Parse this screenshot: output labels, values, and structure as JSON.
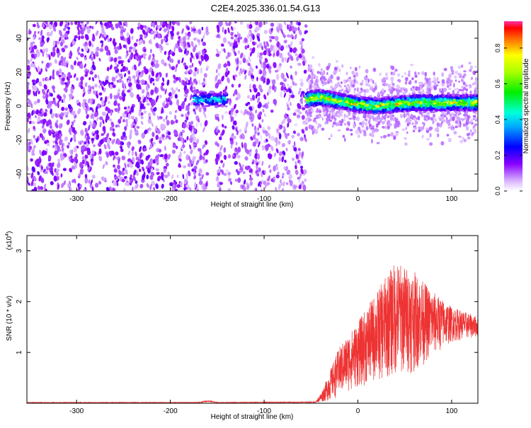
{
  "title": "C2E4.2025.336.01.54.G13",
  "chart_data": [
    {
      "type": "heatmap",
      "xlabel": "Height of straight line (km)",
      "ylabel": "Frequency (Hz)",
      "xlim": [
        -353,
        128
      ],
      "ylim": [
        -50,
        50
      ],
      "xticks": [
        -300,
        -200,
        -100,
        0,
        100
      ],
      "yticks": [
        -40,
        -20,
        0,
        20,
        40
      ],
      "colorbar": {
        "label": "Normalized spectral amplitude",
        "range": [
          0.0,
          0.95
        ],
        "ticks": [
          "0.0",
          "0.2",
          "0.4",
          "0.6",
          "0.8"
        ]
      },
      "regions": [
        {
          "name": "noise",
          "x_range": [
            -353,
            -55
          ],
          "freq_range": [
            -50,
            50
          ],
          "amplitude": 0.15
        },
        {
          "name": "gap",
          "x_range": [
            -160,
            -152
          ],
          "freq_range": [
            -50,
            50
          ],
          "amplitude": 0.0
        },
        {
          "name": "weak-signal",
          "x_range": [
            -175,
            -140
          ],
          "freq_center": 2,
          "amplitude": 0.5
        },
        {
          "name": "signal",
          "x_range": [
            -55,
            128
          ],
          "freq_center": 2,
          "amplitude": 0.95
        }
      ],
      "signal_center_hz": [
        [
          -55,
          4
        ],
        [
          -40,
          5
        ],
        [
          -20,
          3
        ],
        [
          0,
          1
        ],
        [
          20,
          0
        ],
        [
          40,
          1
        ],
        [
          60,
          2
        ],
        [
          80,
          2
        ],
        [
          100,
          2
        ],
        [
          128,
          2
        ]
      ]
    },
    {
      "type": "line",
      "xlabel": "Height of straight line (km)",
      "ylabel": "SNR (10 * v/v)",
      "y_multiplier": "(x10",
      "y_multiplier_exp": "4",
      "y_multiplier_close": ")",
      "xlim": [
        -353,
        128
      ],
      "ylim": [
        0,
        3.3
      ],
      "xticks": [
        -300,
        -200,
        -100,
        0,
        100
      ],
      "yticks": [
        1,
        2,
        3
      ],
      "series": [
        {
          "name": "SNR",
          "color": "#ee3333",
          "envelope": [
            [
              -353,
              0.02
            ],
            [
              -170,
              0.02
            ],
            [
              -160,
              0.06
            ],
            [
              -150,
              0.02
            ],
            [
              -45,
              0.03
            ],
            [
              -38,
              0.25
            ],
            [
              -20,
              1.1
            ],
            [
              0,
              1.6
            ],
            [
              20,
              2.2
            ],
            [
              40,
              2.8
            ],
            [
              60,
              2.6
            ],
            [
              80,
              2.2
            ],
            [
              100,
              1.9
            ],
            [
              128,
              1.7
            ]
          ],
          "floor": [
            [
              -353,
              0.0
            ],
            [
              -45,
              0.0
            ],
            [
              -30,
              0.05
            ],
            [
              0,
              0.3
            ],
            [
              20,
              0.4
            ],
            [
              40,
              0.5
            ],
            [
              60,
              0.6
            ],
            [
              80,
              0.9
            ],
            [
              100,
              1.2
            ],
            [
              128,
              1.3
            ]
          ]
        }
      ]
    }
  ]
}
